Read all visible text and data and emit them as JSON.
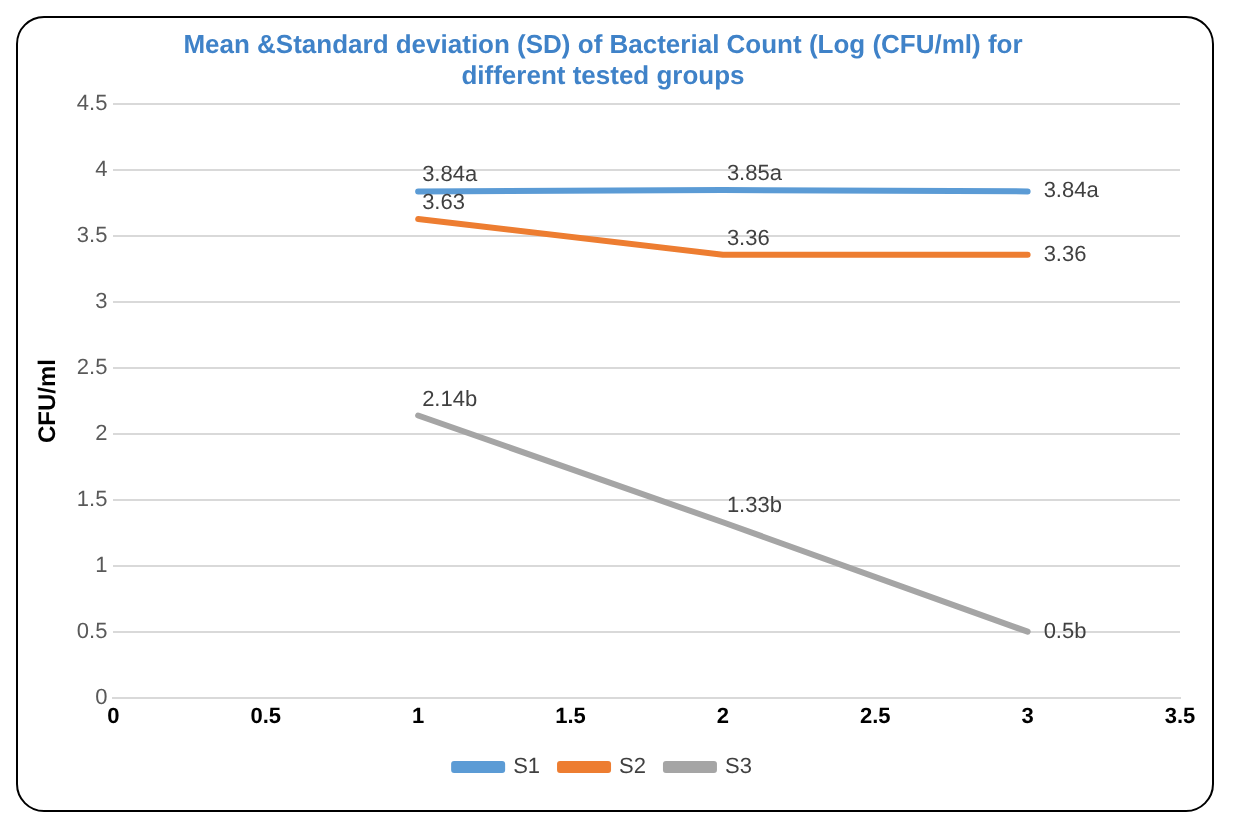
{
  "chart_data": {
    "type": "line",
    "title": "Mean &Standard deviation (SD) of Bacterial Count (Log (CFU/ml) for different tested groups",
    "ylabel": "CFU/ml",
    "x": [
      1,
      2,
      3
    ],
    "series": [
      {
        "name": "S1",
        "color": "#5b9bd5",
        "values": [
          3.84,
          3.85,
          3.84
        ],
        "value_labels": [
          "3.84a",
          "3.85a",
          "3.84a"
        ]
      },
      {
        "name": "S2",
        "color": "#ed7d31",
        "values": [
          3.63,
          3.36,
          3.36
        ],
        "value_labels": [
          "3.63",
          "3.36",
          "3.36"
        ]
      },
      {
        "name": "S3",
        "color": "#a5a5a5",
        "values": [
          2.14,
          1.33,
          0.5
        ],
        "value_labels": [
          "2.14b",
          "1.33b",
          "0.5b"
        ]
      }
    ],
    "xlim": [
      0,
      3.5
    ],
    "xticks": [
      0,
      0.5,
      1,
      1.5,
      2,
      2.5,
      3,
      3.5
    ],
    "ylim": [
      0,
      4.5
    ],
    "yticks": [
      0,
      0.5,
      1,
      1.5,
      2,
      2.5,
      3,
      3.5,
      4,
      4.5
    ],
    "grid": "y",
    "legend": "bottom",
    "marker": "none",
    "line_style": "solid"
  }
}
